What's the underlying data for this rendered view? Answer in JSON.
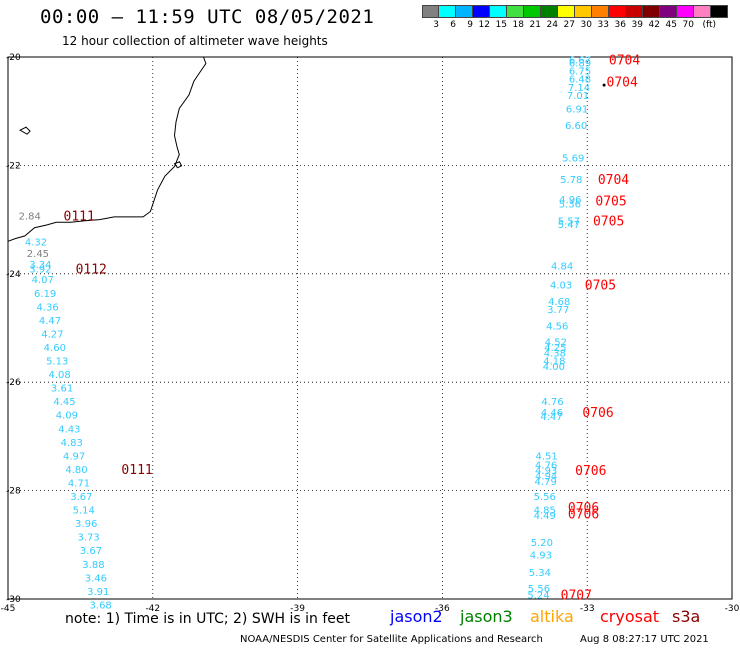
{
  "header": {
    "title": "00:00 – 11:59 UTC 08/05/2021",
    "subtitle": "12 hour collection of altimeter wave heights"
  },
  "legend": {
    "colors": [
      "#808080",
      "#00ffff",
      "#00b4ff",
      "#0000ff",
      "#00ffff",
      "#40e040",
      "#00c800",
      "#008000",
      "#ffff00",
      "#ffc800",
      "#ff8000",
      "#ff0000",
      "#c80000",
      "#800000",
      "#800080",
      "#ff00ff",
      "#ff80c0",
      "#000000"
    ],
    "labels": [
      "3",
      "6",
      "9",
      "12",
      "15",
      "18",
      "21",
      "24",
      "27",
      "30",
      "33",
      "36",
      "39",
      "42",
      "45",
      "70"
    ],
    "unit": "(ft)"
  },
  "map": {
    "x_range": [
      -45,
      -30
    ],
    "y_range": [
      -30,
      -20
    ],
    "x_ticks": [
      "-45",
      "-42",
      "-39",
      "-36",
      "-33",
      "-30"
    ],
    "y_ticks": [
      "-20",
      "-22",
      "-24",
      "-26",
      "-28",
      "-30"
    ],
    "track_west": {
      "color": "#33ccff",
      "points": [
        {
          "lon": -44.55,
          "lat": -22.92,
          "v": "2.84",
          "c": "#808080"
        },
        {
          "lon": -44.42,
          "lat": -23.4,
          "v": "4.32"
        },
        {
          "lon": -44.38,
          "lat": -23.62,
          "v": "2.45",
          "c": "#808080"
        },
        {
          "lon": -44.33,
          "lat": -23.82,
          "v": "3.34"
        },
        {
          "lon": -44.33,
          "lat": -23.9,
          "v": "3.92"
        },
        {
          "lon": -44.28,
          "lat": -24.1,
          "v": "4.07"
        },
        {
          "lon": -44.23,
          "lat": -24.35,
          "v": "6.19"
        },
        {
          "lon": -44.18,
          "lat": -24.6,
          "v": "4.36"
        },
        {
          "lon": -44.13,
          "lat": -24.85,
          "v": "4.47"
        },
        {
          "lon": -44.08,
          "lat": -25.1,
          "v": "4.27"
        },
        {
          "lon": -44.03,
          "lat": -25.35,
          "v": "4.60"
        },
        {
          "lon": -43.98,
          "lat": -25.6,
          "v": "5.13"
        },
        {
          "lon": -43.93,
          "lat": -25.85,
          "v": "4.08"
        },
        {
          "lon": -43.88,
          "lat": -26.1,
          "v": "3.61"
        },
        {
          "lon": -43.83,
          "lat": -26.35,
          "v": "4.45"
        },
        {
          "lon": -43.78,
          "lat": -26.6,
          "v": "4.09"
        },
        {
          "lon": -43.73,
          "lat": -26.85,
          "v": "4.43"
        },
        {
          "lon": -43.68,
          "lat": -27.1,
          "v": "4.83"
        },
        {
          "lon": -43.63,
          "lat": -27.35,
          "v": "4.97"
        },
        {
          "lon": -43.58,
          "lat": -27.6,
          "v": "4.80"
        },
        {
          "lon": -43.53,
          "lat": -27.85,
          "v": "4.71"
        },
        {
          "lon": -43.48,
          "lat": -28.1,
          "v": "3.67"
        },
        {
          "lon": -43.43,
          "lat": -28.35,
          "v": "5.14"
        },
        {
          "lon": -43.38,
          "lat": -28.6,
          "v": "3.96"
        },
        {
          "lon": -43.33,
          "lat": -28.85,
          "v": "3.73"
        },
        {
          "lon": -43.28,
          "lat": -29.1,
          "v": "3.67"
        },
        {
          "lon": -43.23,
          "lat": -29.35,
          "v": "3.88"
        },
        {
          "lon": -43.18,
          "lat": -29.6,
          "v": "3.46"
        },
        {
          "lon": -43.13,
          "lat": -29.85,
          "v": "3.91"
        },
        {
          "lon": -43.08,
          "lat": -30.1,
          "v": "3.68"
        }
      ],
      "time_labels": [
        {
          "lon": -43.85,
          "lat": -22.92,
          "t": "0111",
          "c": "#8b0000"
        },
        {
          "lon": -43.6,
          "lat": -23.9,
          "t": "0112",
          "c": "#8b0000"
        },
        {
          "lon": -42.65,
          "lat": -27.6,
          "t": "0111",
          "c": "#8b0000"
        }
      ]
    },
    "track_east": {
      "color": "#33ccff",
      "points": [
        {
          "lon": -33.15,
          "lat": -20.05,
          "v": "6.67"
        },
        {
          "lon": -33.15,
          "lat": -20.1,
          "v": "6.89"
        },
        {
          "lon": -33.15,
          "lat": -20.25,
          "v": "6.75"
        },
        {
          "lon": -33.15,
          "lat": -20.4,
          "v": "6.48"
        },
        {
          "lon": -33.17,
          "lat": -20.55,
          "v": "7.14"
        },
        {
          "lon": -33.19,
          "lat": -20.7,
          "v": "7.01"
        },
        {
          "lon": -33.21,
          "lat": -20.95,
          "v": "6.91"
        },
        {
          "lon": -33.23,
          "lat": -21.25,
          "v": "6.60"
        },
        {
          "lon": -33.29,
          "lat": -21.85,
          "v": "5.69"
        },
        {
          "lon": -33.33,
          "lat": -22.25,
          "v": "5.78"
        },
        {
          "lon": -33.35,
          "lat": -22.62,
          "v": "4.96"
        },
        {
          "lon": -33.36,
          "lat": -22.7,
          "v": "5.36"
        },
        {
          "lon": -33.38,
          "lat": -23.02,
          "v": "5.57"
        },
        {
          "lon": -33.38,
          "lat": -23.08,
          "v": "5.47"
        },
        {
          "lon": -33.52,
          "lat": -23.85,
          "v": "4.84"
        },
        {
          "lon": -33.54,
          "lat": -24.2,
          "v": "4.03"
        },
        {
          "lon": -33.58,
          "lat": -24.5,
          "v": "4.68"
        },
        {
          "lon": -33.6,
          "lat": -24.65,
          "v": "3.77"
        },
        {
          "lon": -33.62,
          "lat": -24.95,
          "v": "4.56"
        },
        {
          "lon": -33.65,
          "lat": -25.25,
          "v": "4.52"
        },
        {
          "lon": -33.66,
          "lat": -25.35,
          "v": "4.25"
        },
        {
          "lon": -33.67,
          "lat": -25.45,
          "v": "4.38"
        },
        {
          "lon": -33.68,
          "lat": -25.6,
          "v": "4.18"
        },
        {
          "lon": -33.69,
          "lat": -25.7,
          "v": "4.00"
        },
        {
          "lon": -33.72,
          "lat": -26.35,
          "v": "4.76"
        },
        {
          "lon": -33.73,
          "lat": -26.55,
          "v": "4.46"
        },
        {
          "lon": -33.74,
          "lat": -26.62,
          "v": "4.47"
        },
        {
          "lon": -33.84,
          "lat": -27.35,
          "v": "4.51"
        },
        {
          "lon": -33.85,
          "lat": -27.52,
          "v": "4.76"
        },
        {
          "lon": -33.85,
          "lat": -27.62,
          "v": "4.93"
        },
        {
          "lon": -33.85,
          "lat": -27.72,
          "v": "4.94"
        },
        {
          "lon": -33.86,
          "lat": -27.82,
          "v": "4.79"
        },
        {
          "lon": -33.88,
          "lat": -28.1,
          "v": "5.56"
        },
        {
          "lon": -33.88,
          "lat": -28.35,
          "v": "4.85"
        },
        {
          "lon": -33.88,
          "lat": -28.45,
          "v": "4.49"
        },
        {
          "lon": -33.94,
          "lat": -28.95,
          "v": "5.20"
        },
        {
          "lon": -33.96,
          "lat": -29.18,
          "v": "4.93"
        },
        {
          "lon": -33.98,
          "lat": -29.5,
          "v": "5.34"
        },
        {
          "lon": -34.0,
          "lat": -29.8,
          "v": "5.56"
        },
        {
          "lon": -34.01,
          "lat": -29.92,
          "v": "5.24"
        }
      ],
      "time_labels": [
        {
          "lon": -32.55,
          "lat": -20.05,
          "t": "0704",
          "c": "#ff0000"
        },
        {
          "lon": -32.6,
          "lat": -20.45,
          "t": "0704",
          "c": "#ff0000"
        },
        {
          "lon": -32.78,
          "lat": -22.25,
          "t": "0704",
          "c": "#ff0000"
        },
        {
          "lon": -32.83,
          "lat": -22.65,
          "t": "0705",
          "c": "#ff0000"
        },
        {
          "lon": -32.88,
          "lat": -23.02,
          "t": "0705",
          "c": "#ff0000"
        },
        {
          "lon": -33.05,
          "lat": -24.2,
          "t": "0705",
          "c": "#ff0000"
        },
        {
          "lon": -33.1,
          "lat": -26.55,
          "t": "0706",
          "c": "#ff0000"
        },
        {
          "lon": -33.25,
          "lat": -27.62,
          "t": "0706",
          "c": "#ff0000"
        },
        {
          "lon": -33.4,
          "lat": -28.3,
          "t": "0706",
          "c": "#ff0000"
        },
        {
          "lon": -33.4,
          "lat": -28.42,
          "t": "0706",
          "c": "#ff0000"
        },
        {
          "lon": -33.55,
          "lat": -29.92,
          "t": "0707",
          "c": "#ff0000"
        }
      ]
    }
  },
  "footer": {
    "note": "note:  1) Time is in UTC;  2) SWH is in feet",
    "satellites": [
      {
        "name": "jason2",
        "color": "#0000ff"
      },
      {
        "name": "jason3",
        "color": "#008000"
      },
      {
        "name": "altika",
        "color": "#ffa500"
      },
      {
        "name": "cryosat",
        "color": "#ff0000"
      },
      {
        "name": "s3a",
        "color": "#8b0000"
      }
    ],
    "credit": "NOAA/NESDIS Center for Satellite Applications and Research",
    "timestamp": "Aug  8 08:27:17 UTC 2021"
  }
}
